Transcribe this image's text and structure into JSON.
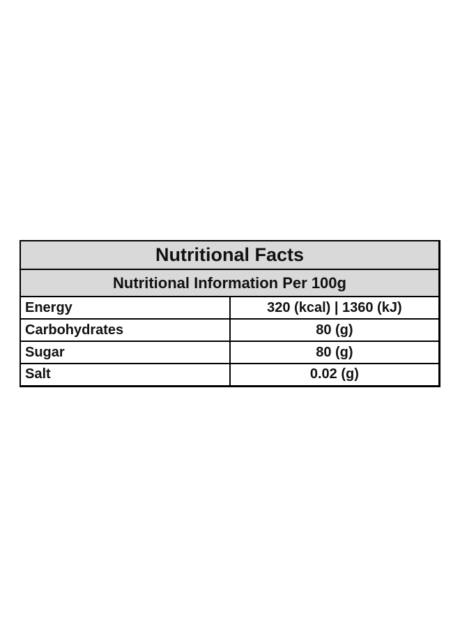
{
  "header": {
    "title": "Nutritional Facts",
    "subtitle": "Nutritional Information Per 100g"
  },
  "table": {
    "rows": [
      [
        "Energy",
        "320 (kcal) | 1360 (kJ)"
      ],
      [
        "Carbohydrates",
        "80 (g)"
      ],
      [
        "Sugar",
        "80 (g)"
      ],
      [
        "Salt",
        "0.02 (g)"
      ]
    ]
  }
}
